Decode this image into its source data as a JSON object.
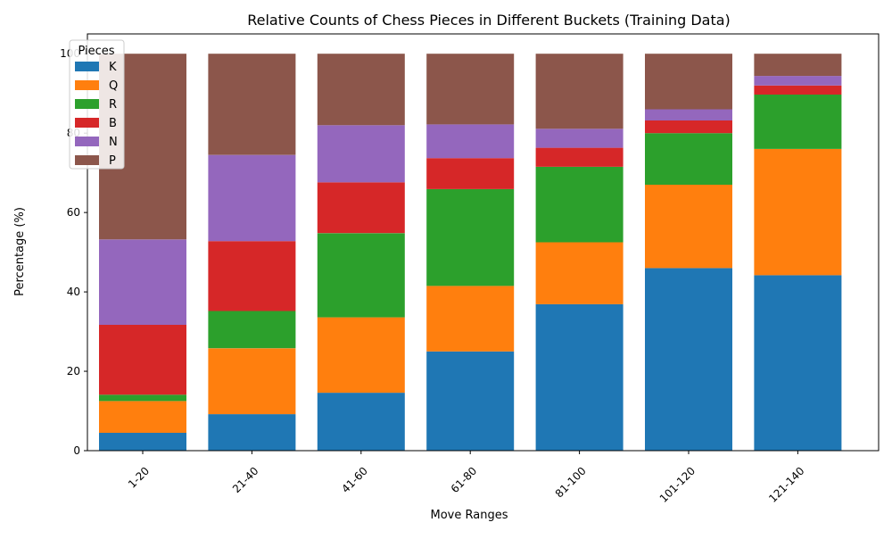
{
  "chart_data": {
    "type": "bar",
    "stacked": true,
    "title": "Relative Counts of Chess Pieces in Different Buckets (Training Data)",
    "xlabel": "Move Ranges",
    "ylabel": "Percentage (%)",
    "ylim": [
      0,
      105
    ],
    "yticks": [
      0,
      20,
      40,
      60,
      80,
      100
    ],
    "categories": [
      "1-20",
      "21-40",
      "41-60",
      "61-80",
      "81-100",
      "101-120",
      "121-140"
    ],
    "legend": {
      "title": "Pieces",
      "placement": "top-left"
    },
    "grid": false,
    "series": [
      {
        "name": "K",
        "color": "#1f77b4",
        "values": [
          4.5,
          9.2,
          14.6,
          25.0,
          36.9,
          46.0,
          44.2
        ]
      },
      {
        "name": "Q",
        "color": "#ff7f0e",
        "values": [
          8.0,
          16.6,
          19.0,
          16.5,
          15.6,
          21.0,
          31.8
        ]
      },
      {
        "name": "R",
        "color": "#2ca02c",
        "values": [
          1.6,
          9.4,
          21.2,
          24.4,
          19.0,
          13.0,
          13.7
        ]
      },
      {
        "name": "B",
        "color": "#d62728",
        "values": [
          17.6,
          17.6,
          12.8,
          7.8,
          4.8,
          3.2,
          2.3
        ]
      },
      {
        "name": "N",
        "color": "#9467bd",
        "values": [
          21.5,
          21.7,
          14.4,
          8.5,
          4.8,
          2.8,
          2.4
        ]
      },
      {
        "name": "P",
        "color": "#8c564b",
        "values": [
          46.8,
          25.5,
          18.0,
          17.8,
          18.9,
          14.0,
          5.6
        ]
      }
    ]
  }
}
